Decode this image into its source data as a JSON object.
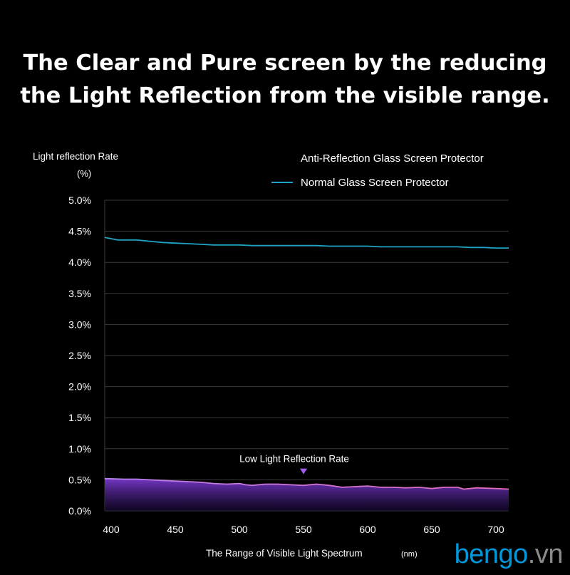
{
  "headline": {
    "line1": "The Clear and Pure screen by the reducing",
    "line2": "the Light Reflection from the visible range."
  },
  "watermark": {
    "brand": "bengo",
    "tld": ".vn"
  },
  "chart_data": {
    "type": "line",
    "title": "",
    "ylabel": "Light reflection Rate",
    "yunit": "(%)",
    "xlabel": "The Range of Visible Light Spectrum",
    "xunit": "(nm)",
    "xlim": [
      395,
      710
    ],
    "ylim": [
      0,
      5.0
    ],
    "x_ticks": [
      400,
      450,
      500,
      550,
      600,
      650,
      700
    ],
    "y_ticks": [
      {
        "value": 0.0,
        "label": "0.0%"
      },
      {
        "value": 0.5,
        "label": "0.5%"
      },
      {
        "value": 1.0,
        "label": "1.0%"
      },
      {
        "value": 1.5,
        "label": "1.5%"
      },
      {
        "value": 2.0,
        "label": "2.0%"
      },
      {
        "value": 2.5,
        "label": "2.5%"
      },
      {
        "value": 3.0,
        "label": "3.0%"
      },
      {
        "value": 3.5,
        "label": "3.5%"
      },
      {
        "value": 4.0,
        "label": "4.0%"
      },
      {
        "value": 4.5,
        "label": "4.5%"
      },
      {
        "value": 5.0,
        "label": "5.0%"
      }
    ],
    "grid": true,
    "legend_position": "top-right",
    "series": [
      {
        "name": "Anti-Reflection Glass Screen Protector",
        "color": "#d76bd8",
        "fill": true,
        "x": [
          395,
          410,
          420,
          430,
          440,
          450,
          460,
          470,
          480,
          490,
          500,
          505,
          510,
          520,
          530,
          540,
          550,
          560,
          570,
          580,
          590,
          600,
          610,
          620,
          630,
          640,
          650,
          655,
          660,
          670,
          675,
          685,
          700,
          710
        ],
        "y": [
          0.52,
          0.51,
          0.51,
          0.5,
          0.49,
          0.48,
          0.47,
          0.46,
          0.44,
          0.43,
          0.44,
          0.42,
          0.41,
          0.43,
          0.43,
          0.42,
          0.41,
          0.43,
          0.41,
          0.38,
          0.39,
          0.4,
          0.38,
          0.38,
          0.37,
          0.38,
          0.36,
          0.37,
          0.38,
          0.38,
          0.35,
          0.37,
          0.36,
          0.35
        ]
      },
      {
        "name": "Normal Glass Screen Protector",
        "color": "#1fa3c4",
        "fill": false,
        "x": [
          395,
          405,
          420,
          430,
          440,
          450,
          460,
          470,
          480,
          490,
          500,
          510,
          520,
          530,
          540,
          550,
          560,
          570,
          580,
          590,
          600,
          610,
          620,
          630,
          640,
          650,
          660,
          670,
          680,
          690,
          700,
          710
        ],
        "y": [
          4.4,
          4.36,
          4.36,
          4.34,
          4.32,
          4.31,
          4.3,
          4.29,
          4.28,
          4.28,
          4.28,
          4.27,
          4.27,
          4.27,
          4.27,
          4.27,
          4.27,
          4.26,
          4.26,
          4.26,
          4.26,
          4.25,
          4.25,
          4.25,
          4.25,
          4.25,
          4.25,
          4.25,
          4.24,
          4.24,
          4.23,
          4.23
        ]
      }
    ],
    "annotation": {
      "text": "Low Light Reflection Rate",
      "x": 550,
      "y": 0.52,
      "marker_color": "#a45cf0"
    }
  }
}
